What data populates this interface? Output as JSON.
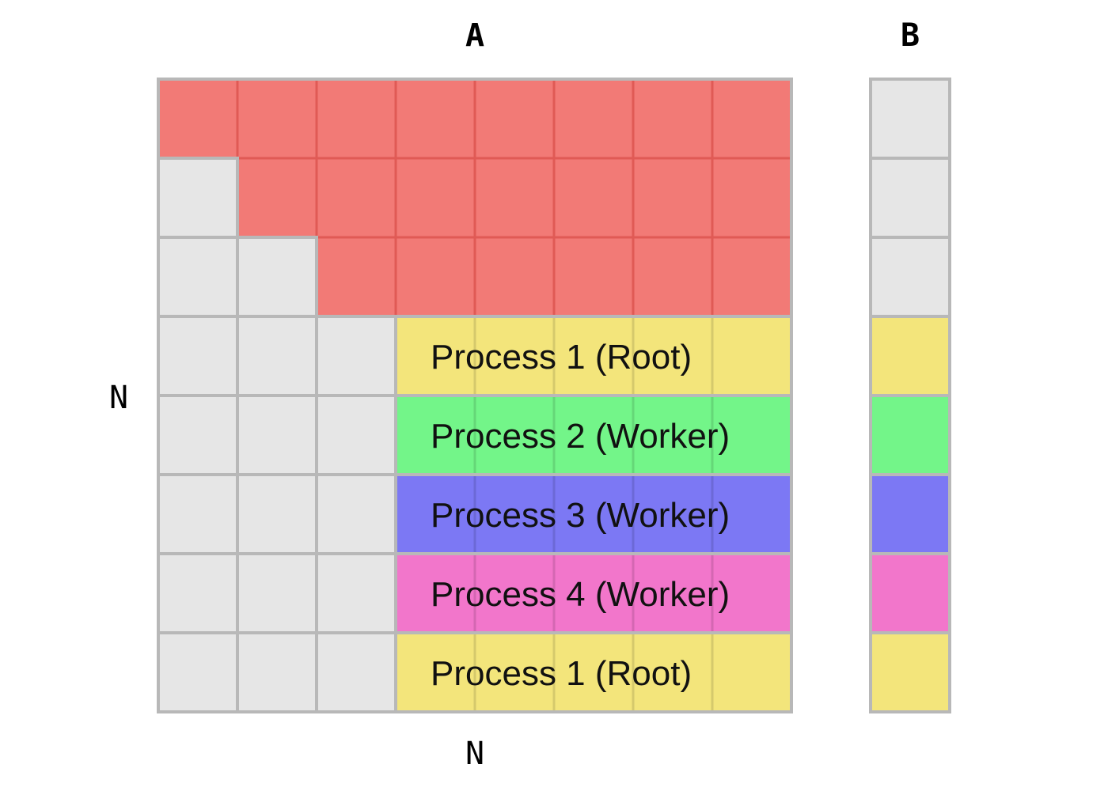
{
  "labels": {
    "matrix_a": "A",
    "vector_b": "B",
    "rows_n": "N",
    "cols_n": "N"
  },
  "grid": {
    "rows": 8,
    "cols": 8
  },
  "colors": {
    "empty": "#e6e6e6",
    "border": "#b8b8b8",
    "upper": "#f27a76",
    "upper_line": "#e05a55",
    "process_1": "#f3e57b",
    "process_2": "#73f589",
    "process_3": "#7c78f4",
    "process_4": "#f276cb"
  },
  "upper_triangle_rows": 3,
  "process_rows": [
    {
      "label": "Process 1 (Root)",
      "color_key": "process_1"
    },
    {
      "label": "Process 2 (Worker)",
      "color_key": "process_2"
    },
    {
      "label": "Process 3 (Worker)",
      "color_key": "process_3"
    },
    {
      "label": "Process 4 (Worker)",
      "color_key": "process_4"
    },
    {
      "label": "Process 1 (Root)",
      "color_key": "process_1"
    }
  ]
}
